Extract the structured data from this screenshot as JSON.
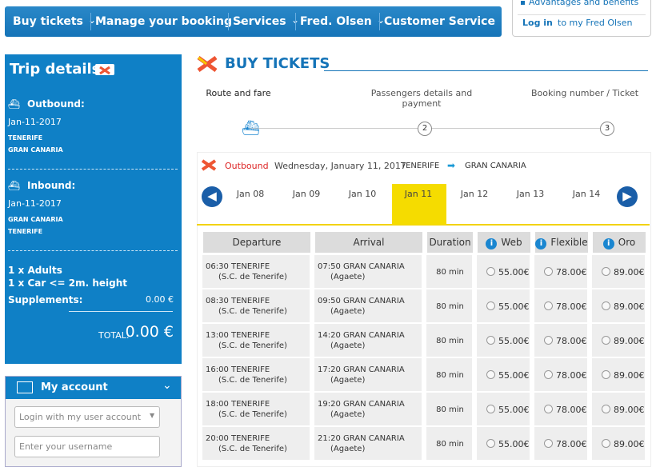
{
  "nav": {
    "items": [
      "Buy tickets",
      "Manage your booking",
      "Services",
      "Fred. Olsen",
      "Customer Service"
    ]
  },
  "account_menu": {
    "benefits": "Advantages and benefits",
    "login": "Log in",
    "login_rest": "to my Fred Olsen"
  },
  "trip": {
    "title": "Trip details",
    "outbound": {
      "label": "Outbound:",
      "date": "Jan-11-2017",
      "from": "TENERIFE",
      "to": "GRAN CANARIA"
    },
    "inbound": {
      "label": "Inbound:",
      "date": "Jan-11-2017",
      "from": "GRAN CANARIA",
      "to": "TENERIFE"
    },
    "passengers": [
      "1 x Adults",
      "1 x Car <= 2m. height"
    ],
    "supplements_label": "Supplements:",
    "supplements": "0.00 €",
    "total_label": "TOTAL:",
    "total": "0.00 €"
  },
  "my_account": {
    "title": "My account",
    "select": "Login with my user account",
    "username": "Enter your username"
  },
  "main": {
    "title": "BUY TICKETS",
    "steps": [
      {
        "label": "Route and fare"
      },
      {
        "label": "Passengers details and payment",
        "number": "2"
      },
      {
        "label": "Booking number / Ticket",
        "number": "3"
      }
    ],
    "leg": {
      "label": "Outbound",
      "date": "Wednesday, January 11, 2017",
      "from": "TENERIFE",
      "to": "GRAN CANARIA"
    },
    "dates": [
      "Jan 08",
      "Jan 09",
      "Jan 10",
      "Jan 11",
      "Jan 12",
      "Jan 13",
      "Jan 14"
    ],
    "selected_date": 3,
    "table": {
      "headers": [
        "Departure",
        "Arrival",
        "Duration",
        "Web",
        "Flexible",
        "Oro"
      ],
      "rows": [
        {
          "departure": "06:30 TENERIFE",
          "departure_port": "(S.C. de Tenerife)",
          "arrival": "07:50 GRAN CANARIA",
          "arrival_port": "(Agaete)",
          "duration": "80 min",
          "web": "55.00€",
          "flexible": "78.00€",
          "oro": "89.00€"
        },
        {
          "departure": "08:30 TENERIFE",
          "departure_port": "(S.C. de Tenerife)",
          "arrival": "09:50 GRAN CANARIA",
          "arrival_port": "(Agaete)",
          "duration": "80 min",
          "web": "55.00€",
          "flexible": "78.00€",
          "oro": "89.00€"
        },
        {
          "departure": "13:00 TENERIFE",
          "departure_port": "(S.C. de Tenerife)",
          "arrival": "14:20 GRAN CANARIA",
          "arrival_port": "(Agaete)",
          "duration": "80 min",
          "web": "55.00€",
          "flexible": "78.00€",
          "oro": "89.00€"
        },
        {
          "departure": "16:00 TENERIFE",
          "departure_port": "(S.C. de Tenerife)",
          "arrival": "17:20 GRAN CANARIA",
          "arrival_port": "(Agaete)",
          "duration": "80 min",
          "web": "55.00€",
          "flexible": "78.00€",
          "oro": "89.00€"
        },
        {
          "departure": "18:00 TENERIFE",
          "departure_port": "(S.C. de Tenerife)",
          "arrival": "19:20 GRAN CANARIA",
          "arrival_port": "(Agaete)",
          "duration": "80 min",
          "web": "55.00€",
          "flexible": "78.00€",
          "oro": "89.00€"
        },
        {
          "departure": "20:00 TENERIFE",
          "departure_port": "(S.C. de Tenerife)",
          "arrival": "21:20 GRAN CANARIA",
          "arrival_port": "(Agaete)",
          "duration": "80 min",
          "web": "55.00€",
          "flexible": "78.00€",
          "oro": "89.00€"
        }
      ]
    }
  }
}
